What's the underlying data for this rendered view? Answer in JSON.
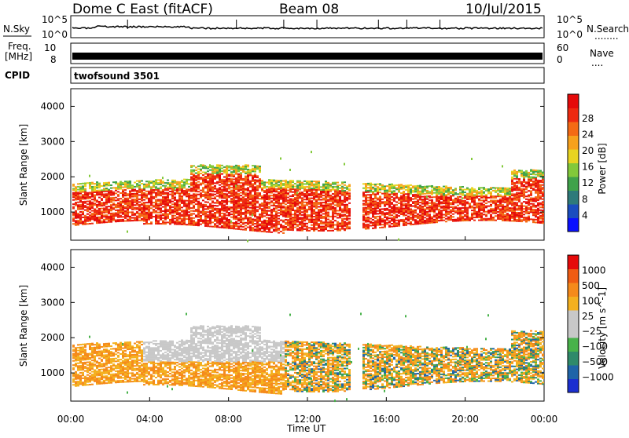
{
  "header": {
    "station": "Dome C East (fitACF)",
    "beam": "Beam 08",
    "date": "10/Jul/2015"
  },
  "nsky": {
    "label": "N.Sky",
    "ticks": [
      "10^5",
      "10^0"
    ],
    "right_ticks": [
      "10^5",
      "10^0"
    ],
    "right_label": "N.Search",
    "right_dots": "........"
  },
  "freq": {
    "label_line1": "Freq.",
    "label_line2": "[MHz]",
    "ticks": [
      "10",
      "8"
    ],
    "right_ticks": [
      "60",
      "0"
    ],
    "right_label": "Nave",
    "right_dots": "...."
  },
  "cpid": {
    "label": "CPID",
    "value": "twofsound 3501"
  },
  "x_axis": {
    "label": "Time UT",
    "ticks": [
      "00:00",
      "04:00",
      "08:00",
      "12:00",
      "16:00",
      "20:00",
      "00:00"
    ]
  },
  "chart_data": [
    {
      "type": "heatmap",
      "title": "",
      "ylabel": "Slant Range [km]",
      "xlabel": "Time UT",
      "ylim": [
        200,
        4500
      ],
      "y_ticks": [
        "1000",
        "2000",
        "3000",
        "4000"
      ],
      "colorbar": {
        "label": "Power [dB]",
        "ticks": [
          "4",
          "8",
          "12",
          "16",
          "20",
          "24",
          "28"
        ],
        "colors": [
          "#0a10ff",
          "#1a4dbf",
          "#2e7a7a",
          "#3fa24a",
          "#82c93a",
          "#e8d421",
          "#f7a11c",
          "#f46a14",
          "#ee2a10",
          "#e50a0a"
        ]
      },
      "main_band": {
        "range_km": [
          600,
          1800
        ],
        "dominant_color": "red"
      }
    },
    {
      "type": "heatmap",
      "title": "",
      "ylabel": "Slant Range [km]",
      "xlabel": "Time UT",
      "ylim": [
        200,
        4500
      ],
      "y_ticks": [
        "1000",
        "2000",
        "3000",
        "4000"
      ],
      "colorbar": {
        "label": "Velocity [m s^-1]",
        "ticks": [
          "1000",
          "500",
          "100",
          "25",
          "−25",
          "−100",
          "−500",
          "−1000"
        ],
        "colors": [
          "#1b2fd0",
          "#1f64a8",
          "#2f8a6a",
          "#48b24a",
          "#c8c8c8",
          "#c8c8c8",
          "#f4b01e",
          "#f58a1a",
          "#ef5c12",
          "#e60a0a"
        ]
      },
      "main_band": {
        "range_km": [
          600,
          1800
        ],
        "dominant_color": "orange"
      }
    }
  ]
}
